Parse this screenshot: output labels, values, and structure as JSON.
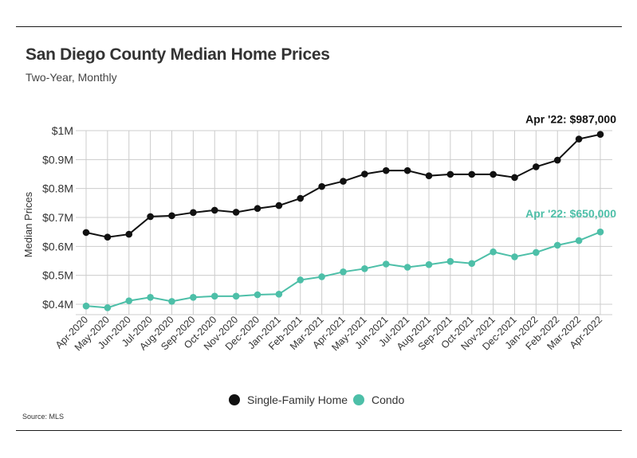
{
  "header": {
    "title": "San Diego County Median Home Prices",
    "subtitle": "Two-Year, Monthly"
  },
  "footer": {
    "source": "Source:  MLS"
  },
  "colors": {
    "single_family": "#111111",
    "condo": "#4dbfa8",
    "grid": "#cccccc"
  },
  "chart_data": {
    "type": "line",
    "title": "San Diego County Median Home Prices",
    "subtitle": "Two-Year, Monthly",
    "xlabel": "",
    "ylabel": "Median Prices",
    "ylim": [
      400000,
      1000000
    ],
    "yticks": [
      400000,
      500000,
      600000,
      700000,
      800000,
      900000,
      1000000
    ],
    "ytick_labels": [
      "$0.4M",
      "$0.5M",
      "$0.6M",
      "$0.7M",
      "$0.8M",
      "$0.9M",
      "$1M"
    ],
    "grid": true,
    "legend_position": "bottom",
    "categories": [
      "Apr-2020",
      "May-2020",
      "Jun-2020",
      "Jul-2020",
      "Aug-2020",
      "Sep-2020",
      "Oct-2020",
      "Nov-2020",
      "Dec-2020",
      "Jan-2021",
      "Feb-2021",
      "Mar-2021",
      "Apr-2021",
      "May-2021",
      "Jun-2021",
      "Jul-2021",
      "Aug-2021",
      "Sep-2021",
      "Oct-2021",
      "Nov-2021",
      "Dec-2021",
      "Jan-2022",
      "Feb-2022",
      "Mar-2022",
      "Apr-2022"
    ],
    "series": [
      {
        "name": "Single-Family Home",
        "color": "#111111",
        "values": [
          648000,
          632000,
          642000,
          703000,
          706000,
          717000,
          725000,
          718000,
          731000,
          741000,
          766000,
          807000,
          825000,
          850000,
          862000,
          862000,
          844000,
          849000,
          849000,
          849000,
          838000,
          875000,
          898000,
          971000,
          987000
        ],
        "end_label": "Apr '22: $987,000"
      },
      {
        "name": "Condo",
        "color": "#4dbfa8",
        "values": [
          394000,
          388000,
          412000,
          424000,
          410000,
          424000,
          428000,
          428000,
          433000,
          435000,
          484000,
          495000,
          512000,
          523000,
          539000,
          528000,
          537000,
          548000,
          541000,
          581000,
          564000,
          579000,
          604000,
          620000,
          650000
        ],
        "end_label": "Apr '22: $650,000"
      }
    ]
  }
}
